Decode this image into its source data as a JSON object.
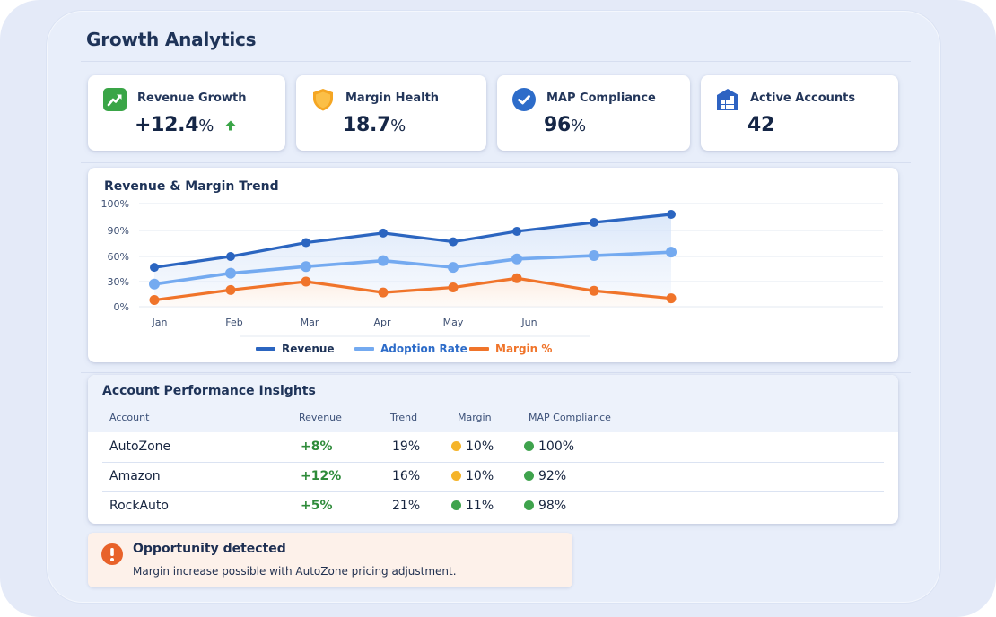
{
  "header": {
    "title": "Growth Analytics"
  },
  "kpis": [
    {
      "label": "Revenue Growth",
      "value": "+12.4",
      "unit": "%",
      "icon": "trending-up-icon",
      "trend": "up",
      "color": "#3aa547"
    },
    {
      "label": "Margin Health",
      "value": "18.7",
      "unit": "%",
      "icon": "shield-icon",
      "color": "#f5a623"
    },
    {
      "label": "MAP Compliance",
      "value": "96",
      "unit": "%",
      "icon": "check-circle-icon",
      "color": "#2d6cc9"
    },
    {
      "label": "Active Accounts",
      "value": "42",
      "unit": "",
      "icon": "building-icon",
      "color": "#2e63c2"
    }
  ],
  "chart_data": {
    "type": "line",
    "title": "Revenue & Margin Trend",
    "xlabel": "",
    "ylabel": "",
    "categories": [
      "Jan",
      "Feb",
      "Mar",
      "Apr",
      "May",
      "Jun",
      "",
      ""
    ],
    "y_ticks": [
      "0%",
      "30%",
      "60%",
      "90%",
      "100%"
    ],
    "y_tick_values": [
      0,
      30,
      60,
      90,
      100
    ],
    "ylim": [
      0,
      100
    ],
    "grid": true,
    "legend_position": "bottom",
    "series": [
      {
        "name": "Revenue",
        "color": "#2b65c0",
        "values": [
          47,
          60,
          76,
          87,
          77,
          89,
          93,
          96
        ]
      },
      {
        "name": "Adoption Rate",
        "color": "#74aaf0",
        "values": [
          27,
          40,
          48,
          55,
          47,
          57,
          61,
          65
        ]
      },
      {
        "name": "Margin %",
        "color": "#f0742a",
        "values": [
          8,
          20,
          30,
          17,
          23,
          34,
          19,
          10
        ]
      }
    ]
  },
  "table": {
    "title": "Account Performance Insights",
    "columns": [
      "Account",
      "Revenue",
      "Trend",
      "Margin",
      "MAP Compliance"
    ],
    "rows": [
      {
        "account": "AutoZone",
        "revenue": "+8%",
        "trend": "19%",
        "margin": "10%",
        "margin_status": "#f5b42a",
        "map": "100%",
        "map_status": "#3fa34d"
      },
      {
        "account": "Amazon",
        "revenue": "+12%",
        "trend": "16%",
        "margin": "10%",
        "margin_status": "#f5b42a",
        "map": "92%",
        "map_status": "#3fa34d"
      },
      {
        "account": "RockAuto",
        "revenue": "+5%",
        "trend": "21%",
        "margin": "11%",
        "margin_status": "#3fa34d",
        "map": "98%",
        "map_status": "#3fa34d"
      }
    ]
  },
  "alert": {
    "icon": "exclamation-circle-icon",
    "title": "Opportunity detected",
    "body": "Margin increase possible with AutoZone pricing adjustment.",
    "color": "#e8622a"
  }
}
